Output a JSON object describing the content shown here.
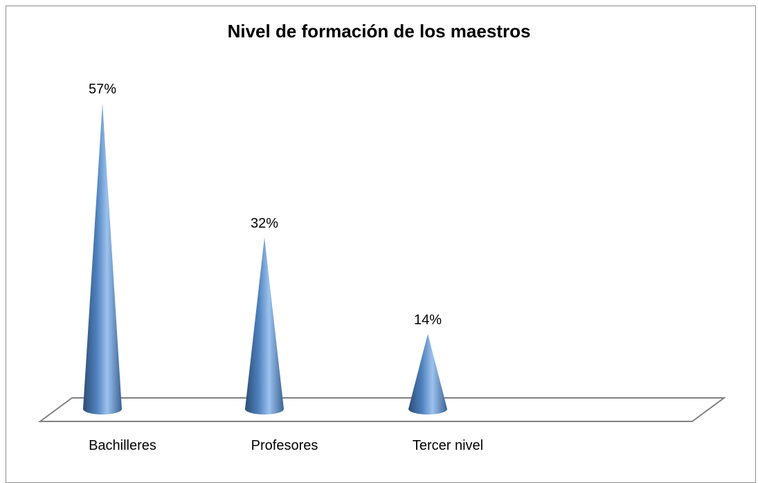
{
  "chart_data": {
    "type": "bar",
    "title": "Nivel de formación de los maestros",
    "categories": [
      "Bachilleres",
      "Profesores",
      "Tercer nivel"
    ],
    "values": [
      57,
      32,
      14
    ],
    "data_labels": [
      "57%",
      "32%",
      "14%"
    ],
    "xlabel": "",
    "ylabel": "",
    "ylim": [
      0,
      60
    ],
    "grid": false,
    "legend": "none",
    "colors": {
      "bar": "#4f81bd",
      "bar_dark": "#2c4d75",
      "bar_light": "#9cc2ee",
      "floor": "#808080"
    }
  }
}
